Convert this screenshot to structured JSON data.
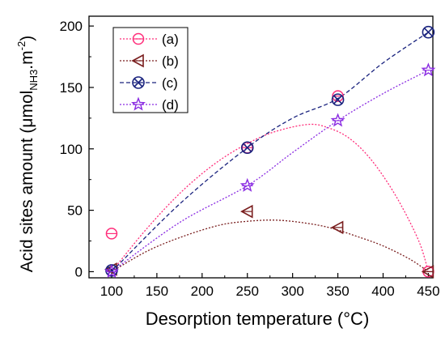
{
  "chart_data": {
    "type": "scatter",
    "xlabel": "Desorption temperature (°C)",
    "ylabel_main": "Acid sites amount (μmol",
    "ylabel_sub": "NH3",
    "ylabel_unit": ".m",
    "ylabel_sup": "-2",
    "ylabel_close": ")",
    "xlim": [
      75,
      455
    ],
    "ylim": [
      -5,
      208
    ],
    "x_ticks": [
      100,
      150,
      200,
      250,
      300,
      350,
      400,
      450
    ],
    "y_ticks": [
      0,
      50,
      100,
      150,
      200
    ],
    "legend_position": "top-left",
    "series": [
      {
        "name": "(a)",
        "color": "#ff2d7a",
        "marker": "circle",
        "x": [
          100,
          250,
          350,
          450
        ],
        "y": [
          31,
          101,
          143,
          0
        ],
        "fit_curve": [
          [
            100,
            0
          ],
          [
            140,
            36
          ],
          [
            180,
            67
          ],
          [
            220,
            91
          ],
          [
            260,
            108
          ],
          [
            290,
            116
          ],
          [
            320,
            120
          ],
          [
            340,
            117
          ],
          [
            360,
            110
          ],
          [
            380,
            97
          ],
          [
            400,
            78
          ],
          [
            420,
            54
          ],
          [
            440,
            24
          ],
          [
            450,
            0
          ]
        ]
      },
      {
        "name": "(b)",
        "color": "#7a1f1f",
        "marker": "triangle-left",
        "x": [
          100,
          250,
          350,
          450
        ],
        "y": [
          2,
          49,
          36,
          0
        ],
        "fit_curve": [
          [
            100,
            0
          ],
          [
            140,
            17
          ],
          [
            180,
            29
          ],
          [
            220,
            38
          ],
          [
            250,
            41
          ],
          [
            280,
            42
          ],
          [
            310,
            40
          ],
          [
            340,
            36
          ],
          [
            370,
            29
          ],
          [
            400,
            21
          ],
          [
            430,
            10
          ],
          [
            450,
            0
          ]
        ]
      },
      {
        "name": "(c)",
        "color": "#1a237e",
        "marker": "circle-x",
        "x": [
          100,
          250,
          350,
          450
        ],
        "y": [
          1,
          101,
          140,
          195
        ],
        "fit_curve": [
          [
            100,
            0
          ],
          [
            175,
            55
          ],
          [
            250,
            101
          ],
          [
            300,
            125
          ],
          [
            350,
            141
          ],
          [
            400,
            170
          ],
          [
            450,
            195
          ]
        ]
      },
      {
        "name": "(d)",
        "color": "#8a2be2",
        "marker": "star",
        "x": [
          100,
          250,
          350,
          450
        ],
        "y": [
          0,
          70,
          123,
          164
        ],
        "fit_curve": [
          [
            100,
            0
          ],
          [
            175,
            40
          ],
          [
            250,
            70
          ],
          [
            300,
            97
          ],
          [
            350,
            123
          ],
          [
            400,
            145
          ],
          [
            450,
            164
          ]
        ]
      }
    ]
  }
}
